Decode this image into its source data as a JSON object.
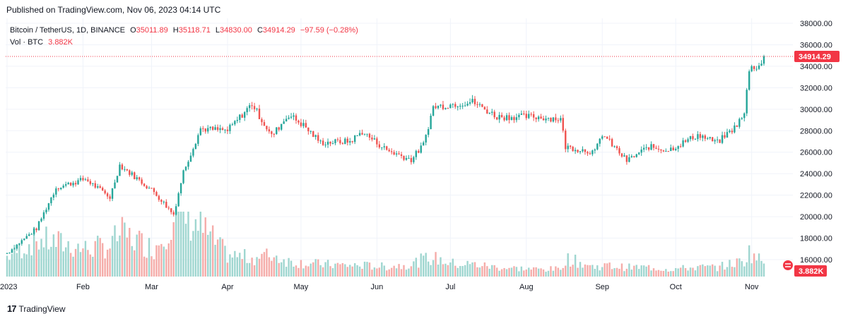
{
  "published": "Published on TradingView.com, Nov 06, 2023 04:14 UTC",
  "legend": {
    "symbol": "Bitcoin / TetherUS, 1D, BINANCE",
    "o_label": "O",
    "o_val": "35011.89",
    "h_label": "H",
    "h_val": "35118.71",
    "l_label": "L",
    "l_val": "34830.00",
    "c_label": "C",
    "c_val": "34914.29",
    "change": "−97.59 (−0.28%)",
    "vol_label": "Vol · BTC",
    "vol_val": "3.882K"
  },
  "price_badge": "34914.29",
  "volume_badge": "3.882K",
  "footer": {
    "logo": "17",
    "brand": "TradingView"
  },
  "colors": {
    "up": "#26a69a",
    "down": "#ef5350",
    "up_vol": "#9fd6d0",
    "down_vol": "#f5aca9",
    "badge": "#f23645",
    "grid": "#f0f3fa"
  },
  "chart_data": {
    "type": "candlestick",
    "y_ticks": [
      "38000.00",
      "36000.00",
      "34000.00",
      "32000.00",
      "30000.00",
      "28000.00",
      "26000.00",
      "24000.00",
      "22000.00",
      "20000.00",
      "18000.00",
      "16000.00"
    ],
    "ylim": [
      15500,
      38500
    ],
    "x_labels": [
      "2023",
      "Feb",
      "Mar",
      "Apr",
      "May",
      "Jun",
      "Jul",
      "Aug",
      "Sep",
      "Oct",
      "Nov"
    ],
    "last_close": 34914.29,
    "anchors": [
      {
        "day": 0,
        "close": 16600,
        "volume": 0.32
      },
      {
        "day": 12,
        "close": 18900,
        "volume": 0.6
      },
      {
        "day": 20,
        "close": 22700,
        "volume": 0.55
      },
      {
        "day": 32,
        "close": 23500,
        "volume": 0.45
      },
      {
        "day": 42,
        "close": 21800,
        "volume": 0.5
      },
      {
        "day": 46,
        "close": 24800,
        "volume": 0.7
      },
      {
        "day": 55,
        "close": 23200,
        "volume": 0.55
      },
      {
        "day": 60,
        "close": 22300,
        "volume": 0.45
      },
      {
        "day": 68,
        "close": 20200,
        "volume": 0.95
      },
      {
        "day": 72,
        "close": 24200,
        "volume": 1.0
      },
      {
        "day": 79,
        "close": 28200,
        "volume": 0.8
      },
      {
        "day": 90,
        "close": 28000,
        "volume": 0.35
      },
      {
        "day": 100,
        "close": 30500,
        "volume": 0.3
      },
      {
        "day": 108,
        "close": 27500,
        "volume": 0.35
      },
      {
        "day": 115,
        "close": 29500,
        "volume": 0.25
      },
      {
        "day": 121,
        "close": 28500,
        "volume": 0.22
      },
      {
        "day": 128,
        "close": 26900,
        "volume": 0.2
      },
      {
        "day": 140,
        "close": 27000,
        "volume": 0.18
      },
      {
        "day": 145,
        "close": 27900,
        "volume": 0.18
      },
      {
        "day": 155,
        "close": 26200,
        "volume": 0.16
      },
      {
        "day": 165,
        "close": 25300,
        "volume": 0.2
      },
      {
        "day": 170,
        "close": 26700,
        "volume": 0.28
      },
      {
        "day": 174,
        "close": 30200,
        "volume": 0.3
      },
      {
        "day": 183,
        "close": 30500,
        "volume": 0.2
      },
      {
        "day": 190,
        "close": 30700,
        "volume": 0.2
      },
      {
        "day": 200,
        "close": 29300,
        "volume": 0.15
      },
      {
        "day": 215,
        "close": 29300,
        "volume": 0.12
      },
      {
        "day": 226,
        "close": 29100,
        "volume": 0.12
      },
      {
        "day": 228,
        "close": 26500,
        "volume": 0.3
      },
      {
        "day": 240,
        "close": 26000,
        "volume": 0.15
      },
      {
        "day": 243,
        "close": 27700,
        "volume": 0.18
      },
      {
        "day": 253,
        "close": 25200,
        "volume": 0.15
      },
      {
        "day": 262,
        "close": 26500,
        "volume": 0.15
      },
      {
        "day": 270,
        "close": 26200,
        "volume": 0.12
      },
      {
        "day": 282,
        "close": 27600,
        "volume": 0.15
      },
      {
        "day": 290,
        "close": 26900,
        "volume": 0.15
      },
      {
        "day": 297,
        "close": 28300,
        "volume": 0.22
      },
      {
        "day": 301,
        "close": 29500,
        "volume": 0.25
      },
      {
        "day": 303,
        "close": 33800,
        "volume": 0.4
      },
      {
        "day": 308,
        "close": 34200,
        "volume": 0.25
      },
      {
        "day": 314,
        "close": 35100,
        "volume": 0.2
      },
      {
        "day": 309,
        "close": 34914.29,
        "volume": 0.12
      }
    ]
  }
}
